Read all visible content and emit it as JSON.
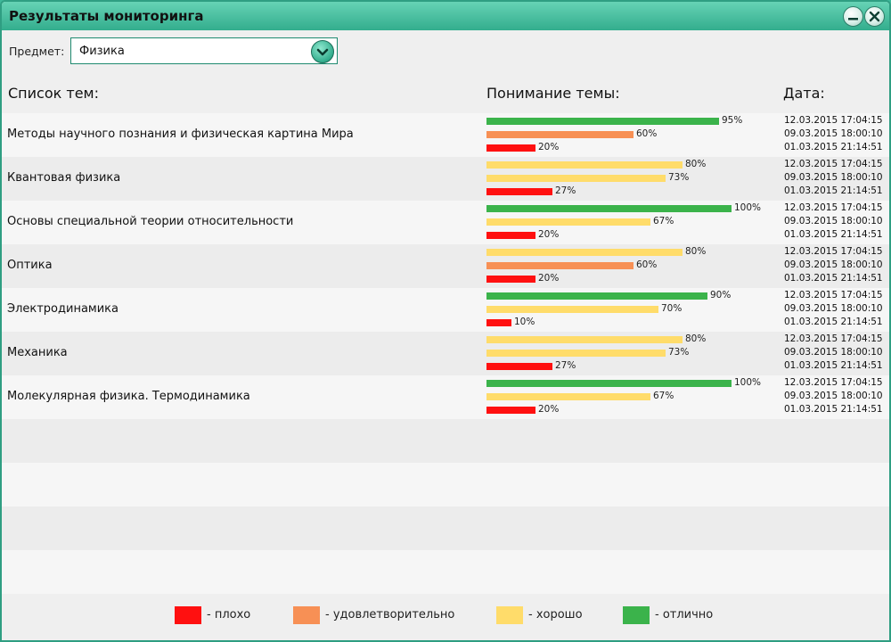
{
  "window": {
    "title": "Результаты мониторинга"
  },
  "subject": {
    "label": "Предмет:",
    "value": "Физика"
  },
  "headers": {
    "topics": "Список тем:",
    "understanding": "Понимание темы:",
    "date": "Дата:"
  },
  "colors": {
    "bad": "#ff1010",
    "satisfactory": "#f79055",
    "good": "#ffdc6a",
    "excellent": "#3bb34b"
  },
  "topics": [
    {
      "name": "Методы научного познания и физическая картина Мира",
      "results": [
        {
          "percent": 95,
          "level": "excellent",
          "date": "12.03.2015 17:04:15"
        },
        {
          "percent": 60,
          "level": "satisfactory",
          "date": "09.03.2015 18:00:10"
        },
        {
          "percent": 20,
          "level": "bad",
          "date": "01.03.2015 21:14:51"
        }
      ]
    },
    {
      "name": "Квантовая физика",
      "results": [
        {
          "percent": 80,
          "level": "good",
          "date": "12.03.2015 17:04:15"
        },
        {
          "percent": 73,
          "level": "good",
          "date": "09.03.2015 18:00:10"
        },
        {
          "percent": 27,
          "level": "bad",
          "date": "01.03.2015 21:14:51"
        }
      ]
    },
    {
      "name": "Основы специальной теории относительности",
      "results": [
        {
          "percent": 100,
          "level": "excellent",
          "date": "12.03.2015 17:04:15"
        },
        {
          "percent": 67,
          "level": "good",
          "date": "09.03.2015 18:00:10"
        },
        {
          "percent": 20,
          "level": "bad",
          "date": "01.03.2015 21:14:51"
        }
      ]
    },
    {
      "name": "Оптика",
      "results": [
        {
          "percent": 80,
          "level": "good",
          "date": "12.03.2015 17:04:15"
        },
        {
          "percent": 60,
          "level": "satisfactory",
          "date": "09.03.2015 18:00:10"
        },
        {
          "percent": 20,
          "level": "bad",
          "date": "01.03.2015 21:14:51"
        }
      ]
    },
    {
      "name": "Электродинамика",
      "results": [
        {
          "percent": 90,
          "level": "excellent",
          "date": "12.03.2015 17:04:15"
        },
        {
          "percent": 70,
          "level": "good",
          "date": "09.03.2015 18:00:10"
        },
        {
          "percent": 10,
          "level": "bad",
          "date": "01.03.2015 21:14:51"
        }
      ]
    },
    {
      "name": "Механика",
      "results": [
        {
          "percent": 80,
          "level": "good",
          "date": "12.03.2015 17:04:15"
        },
        {
          "percent": 73,
          "level": "good",
          "date": "09.03.2015 18:00:10"
        },
        {
          "percent": 27,
          "level": "bad",
          "date": "01.03.2015 21:14:51"
        }
      ]
    },
    {
      "name": "Молекулярная физика. Термодинамика",
      "results": [
        {
          "percent": 100,
          "level": "excellent",
          "date": "12.03.2015 17:04:15"
        },
        {
          "percent": 67,
          "level": "good",
          "date": "09.03.2015 18:00:10"
        },
        {
          "percent": 20,
          "level": "bad",
          "date": "01.03.2015 21:14:51"
        }
      ]
    }
  ],
  "empty_rows": 4,
  "legend": [
    {
      "level": "bad",
      "label": "- плохо"
    },
    {
      "level": "satisfactory",
      "label": "- удовлетворительно"
    },
    {
      "level": "good",
      "label": "- хорошо"
    },
    {
      "level": "excellent",
      "label": "- отлично"
    }
  ]
}
